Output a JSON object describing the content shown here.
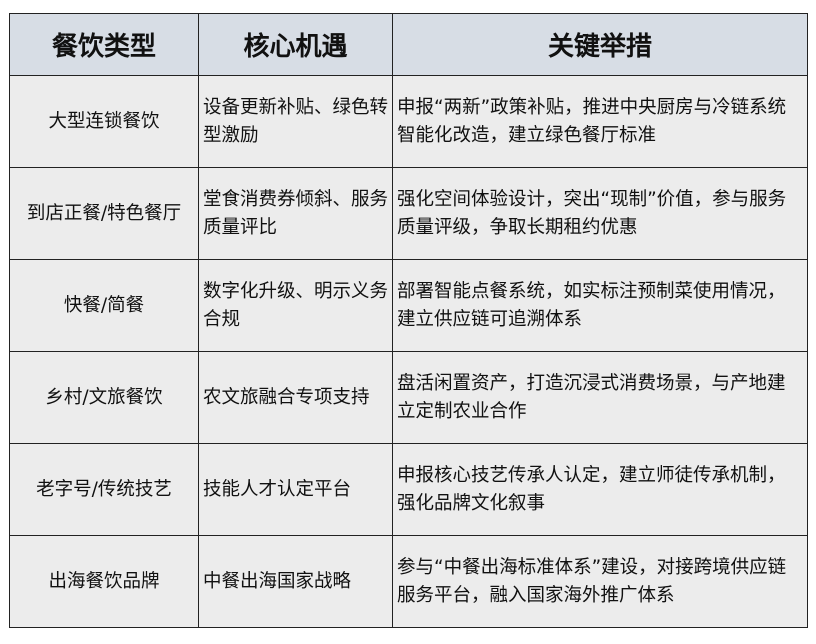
{
  "table": {
    "headers": [
      "餐饮类型",
      "核心机遇",
      "关键举措"
    ],
    "rows": [
      {
        "type": "大型连锁餐饮",
        "opportunity": "设备更新补贴、绿色转型激励",
        "measures": "申报“两新”政策补贴，推进中央厨房与冷链系统智能化改造，建立绿色餐厅标准"
      },
      {
        "type": "到店正餐/特色餐厅",
        "opportunity": "堂食消费券倾斜、服务质量评比",
        "measures": "强化空间体验设计，突出“现制”价值，参与服务质量评级，争取长期租约优惠"
      },
      {
        "type": "快餐/简餐",
        "opportunity": "数字化升级、明示义务合规",
        "measures": "部署智能点餐系统，如实标注预制菜使用情况，建立供应链可追溯体系"
      },
      {
        "type": "乡村/文旅餐饮",
        "opportunity": "农文旅融合专项支持",
        "measures": "盘活闲置资产，打造沉浸式消费场景，与产地建立定制农业合作"
      },
      {
        "type": "老字号/传统技艺",
        "opportunity": "技能人才认定平台",
        "measures": "申报核心技艺传承人认定，建立师徒传承机制，强化品牌文化叙事"
      },
      {
        "type": "出海餐饮品牌",
        "opportunity": "中餐出海国家战略",
        "measures": "参与“中餐出海标准体系”建设，对接跨境供应链服务平台，融入国家海外推广体系"
      }
    ]
  },
  "colors": {
    "header_bg": "#d7dde5",
    "cell_bg": "#ececec",
    "border": "#222222"
  }
}
